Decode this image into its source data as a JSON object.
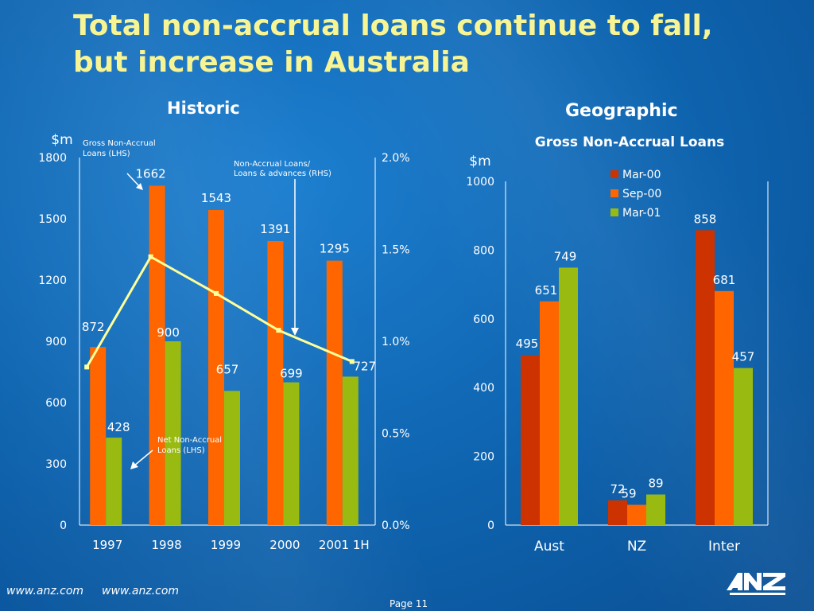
{
  "slide": {
    "title": "Total non-accrual loans continue to fall, but increase in Australia",
    "footer_url_1": "www.anz.com",
    "footer_url_2": "www.anz.com",
    "page_label": "Page 11",
    "logo_text": "ANZ"
  },
  "colors": {
    "orange_bar": "#ff6600",
    "green_bar": "#99bb11",
    "line_yellow": "#ffff99",
    "mar00": "#cc3300",
    "sep00": "#ff6600",
    "mar01": "#99bb11",
    "title_yellow": "#f7f494"
  },
  "chart_data": [
    {
      "type": "bar",
      "title": "Historic",
      "ylabel": "$m",
      "categories": [
        "1997",
        "1998",
        "1999",
        "2000",
        "2001 1H"
      ],
      "series": [
        {
          "name": "Gross Non-Accrual Loans (LHS)",
          "values": [
            872,
            1662,
            1543,
            1391,
            1295
          ],
          "labels": [
            "872",
            "1662",
            "1543",
            "1391",
            "1295"
          ]
        },
        {
          "name": "Net Non-Accrual Loans (LHS)",
          "values": [
            428,
            900,
            657,
            699,
            727
          ],
          "labels": [
            "428",
            "900",
            "657",
            "699",
            "727"
          ]
        }
      ],
      "line_series": {
        "name": "Non-Accrual Loans/ Loans & advances (RHS)",
        "values": [
          0.86,
          1.46,
          1.26,
          1.06,
          0.89
        ]
      },
      "ylim": [
        0,
        1800
      ],
      "yticks": [
        "0",
        "300",
        "600",
        "900",
        "1200",
        "1500",
        "1800"
      ],
      "y2lim": [
        0,
        2.0
      ],
      "y2ticks": [
        "0.0%",
        "0.5%",
        "1.0%",
        "1.5%",
        "2.0%"
      ],
      "annotations": {
        "gross_line1": "Gross Non-Accrual",
        "gross_line2": "Loans (LHS)",
        "ratio_line1": "Non-Accrual Loans/",
        "ratio_line2": "Loans & advances (RHS)",
        "net_line1": "Net Non-Accrual",
        "net_line2": "Loans (LHS)"
      }
    },
    {
      "type": "bar",
      "title": "Geographic",
      "subtitle": "Gross Non-Accrual Loans",
      "ylabel": "$m",
      "categories": [
        "Aust",
        "NZ",
        "Inter"
      ],
      "series": [
        {
          "name": "Mar-00",
          "values": [
            495,
            72,
            858
          ],
          "labels": [
            "495",
            "72",
            "858"
          ]
        },
        {
          "name": "Sep-00",
          "values": [
            651,
            59,
            681
          ],
          "labels": [
            "651",
            "59",
            "681"
          ]
        },
        {
          "name": "Mar-01",
          "values": [
            749,
            89,
            457
          ],
          "labels": [
            "749",
            "89",
            "457"
          ]
        }
      ],
      "ylim": [
        0,
        1000
      ],
      "yticks": [
        "0",
        "200",
        "400",
        "600",
        "800",
        "1000"
      ],
      "legend_position": "top-right"
    }
  ]
}
